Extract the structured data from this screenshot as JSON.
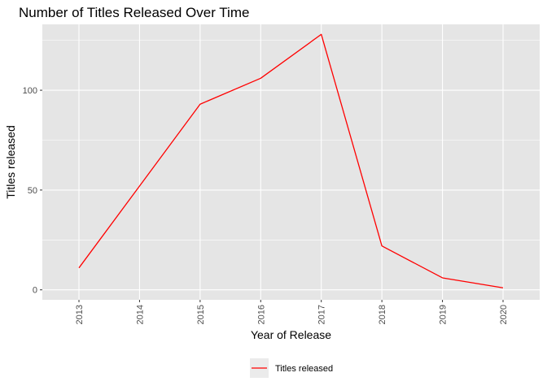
{
  "chart_data": {
    "type": "line",
    "title": "Number of Titles Released Over Time",
    "xlabel": "Year of Release",
    "ylabel": "Titles released",
    "x": [
      "2013",
      "2014",
      "2015",
      "2016",
      "2017",
      "2018",
      "2019",
      "2020"
    ],
    "series": [
      {
        "name": "Titles released",
        "values": [
          11,
          52,
          93,
          106,
          128,
          22,
          6,
          1
        ],
        "color": "#ff0000"
      }
    ],
    "yticks": [
      0,
      50,
      100
    ],
    "ylim": [
      -5,
      133
    ],
    "grid": true,
    "panel_background": "#e5e5e5",
    "gridline_color": "#ffffff",
    "legend_position": "bottom"
  }
}
